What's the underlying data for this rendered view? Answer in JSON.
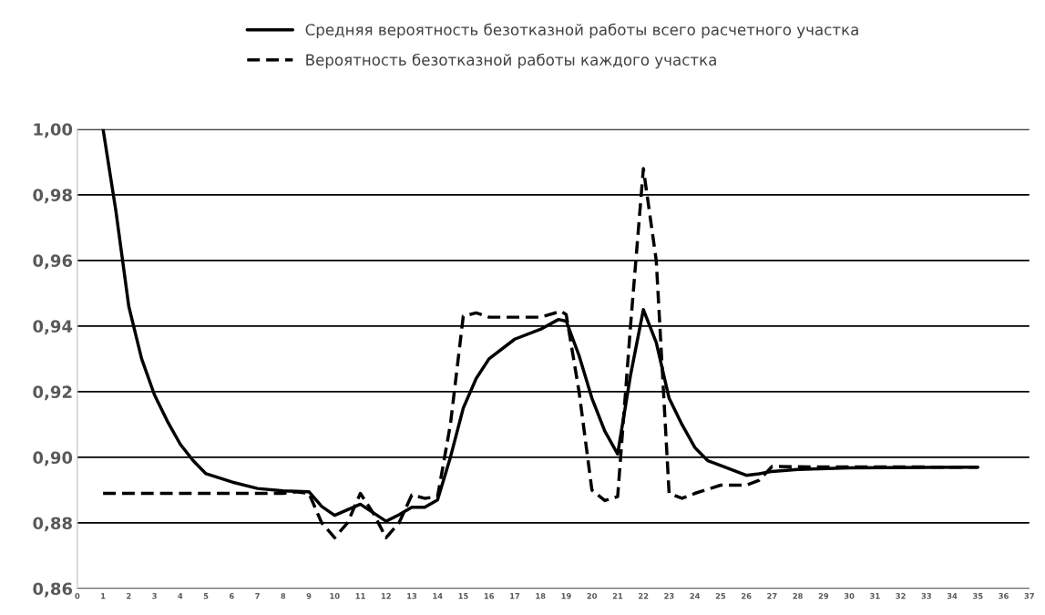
{
  "chart_data": {
    "type": "line",
    "xlim": [
      0,
      37
    ],
    "xticks": [
      0,
      1,
      2,
      3,
      4,
      5,
      6,
      7,
      8,
      9,
      10,
      11,
      12,
      13,
      14,
      15,
      16,
      17,
      18,
      19,
      20,
      21,
      22,
      23,
      24,
      25,
      26,
      27,
      28,
      29,
      30,
      31,
      32,
      33,
      34,
      35,
      36,
      37
    ],
    "ylim": [
      0.86,
      1.0
    ],
    "yticks": [
      {
        "value": 0.86,
        "label": "0,86"
      },
      {
        "value": 0.88,
        "label": "0,88"
      },
      {
        "value": 0.9,
        "label": "0,90"
      },
      {
        "value": 0.92,
        "label": "0,92"
      },
      {
        "value": 0.94,
        "label": "0,94"
      },
      {
        "value": 0.96,
        "label": "0,96"
      },
      {
        "value": 0.98,
        "label": "0,98"
      },
      {
        "value": 1.0,
        "label": "1,00"
      }
    ],
    "grid": "y",
    "legend": "top",
    "marker": "none",
    "series": [
      {
        "name": "Средняя вероятность безотказной работы всего расчетного участка",
        "color": "#000000",
        "line_style": "solid",
        "x": [
          1,
          1.5,
          2,
          2.5,
          3,
          3.5,
          4,
          4.5,
          5,
          6,
          7,
          8,
          9,
          9.5,
          10,
          11,
          12,
          12.5,
          13,
          13.5,
          14,
          14.5,
          15,
          15.5,
          16,
          17,
          18,
          18.7,
          19,
          19.5,
          20,
          20.5,
          21,
          21.5,
          22,
          22.5,
          23,
          23.5,
          24,
          24.5,
          25,
          26,
          26.5,
          27,
          28,
          30,
          35
        ],
        "values": [
          1.0,
          0.975,
          0.946,
          0.93,
          0.919,
          0.911,
          0.904,
          0.899,
          0.895,
          0.8925,
          0.8905,
          0.8898,
          0.8895,
          0.885,
          0.8823,
          0.8857,
          0.8805,
          0.8825,
          0.8848,
          0.8848,
          0.887,
          0.9,
          0.915,
          0.924,
          0.93,
          0.936,
          0.939,
          0.942,
          0.9415,
          0.931,
          0.918,
          0.908,
          0.901,
          0.925,
          0.945,
          0.935,
          0.918,
          0.91,
          0.903,
          0.899,
          0.8975,
          0.8945,
          0.895,
          0.8957,
          0.8963,
          0.8968,
          0.897
        ]
      },
      {
        "name": "Вероятность безотказной работы каждого участка",
        "color": "#000000",
        "line_style": "dashed",
        "x": [
          1,
          8,
          8.5,
          9,
          9.5,
          10,
          10.5,
          11,
          11.5,
          12,
          12.5,
          13,
          13.5,
          14,
          14.5,
          15,
          15.5,
          16,
          17,
          18,
          18.8,
          19,
          19.5,
          20,
          20.5,
          21,
          21.5,
          22,
          22.5,
          23,
          23.5,
          24,
          25,
          26,
          26.5,
          27,
          28,
          35
        ],
        "values": [
          0.889,
          0.889,
          0.8895,
          0.889,
          0.88,
          0.8755,
          0.88,
          0.889,
          0.883,
          0.8755,
          0.88,
          0.8885,
          0.8875,
          0.888,
          0.91,
          0.943,
          0.944,
          0.9427,
          0.9427,
          0.9427,
          0.9445,
          0.9435,
          0.92,
          0.89,
          0.8868,
          0.888,
          0.94,
          0.988,
          0.96,
          0.889,
          0.8875,
          0.889,
          0.8915,
          0.8915,
          0.893,
          0.8972,
          0.8971,
          0.897
        ]
      }
    ]
  }
}
